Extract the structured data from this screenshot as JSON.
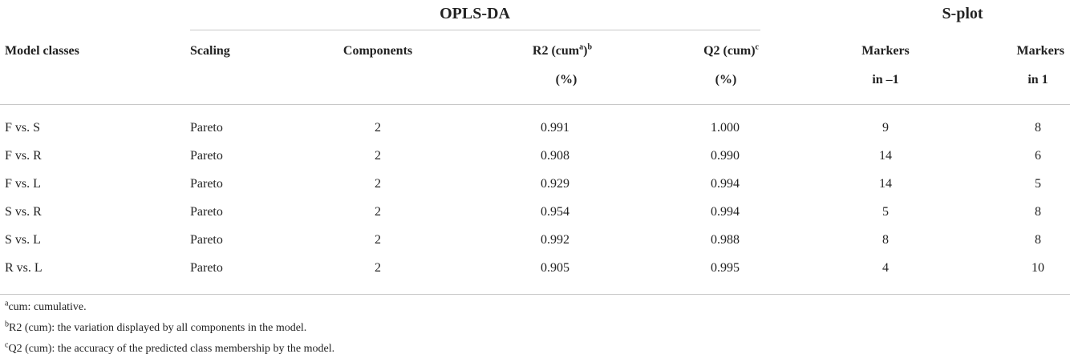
{
  "header": {
    "group_oplsda": "OPLS-DA",
    "group_splot": "S-plot",
    "col_model": "Model classes",
    "col_scaling": "Scaling",
    "col_components": "Components",
    "col_r2": "R2 (cum",
    "col_r2_sup_a": "a",
    "col_r2_close": ")",
    "col_r2_sup_b": "b",
    "col_r2_unit": "(%)",
    "col_q2": "Q2 (cum)",
    "col_q2_sup": "c",
    "col_q2_unit": "(%)",
    "col_m1_line1": "Markers",
    "col_m1_line2": "in –1",
    "col_m2_line1": "Markers",
    "col_m2_line2": "in 1"
  },
  "rows": [
    {
      "model": "F vs. S",
      "scaling": "Pareto",
      "components": "2",
      "r2": "0.991",
      "q2": "1.000",
      "m1": "9",
      "m2": "8"
    },
    {
      "model": "F vs. R",
      "scaling": "Pareto",
      "components": "2",
      "r2": "0.908",
      "q2": "0.990",
      "m1": "14",
      "m2": "6"
    },
    {
      "model": "F vs. L",
      "scaling": "Pareto",
      "components": "2",
      "r2": "0.929",
      "q2": "0.994",
      "m1": "14",
      "m2": "5"
    },
    {
      "model": "S vs. R",
      "scaling": "Pareto",
      "components": "2",
      "r2": "0.954",
      "q2": "0.994",
      "m1": "5",
      "m2": "8"
    },
    {
      "model": "S vs. L",
      "scaling": "Pareto",
      "components": "2",
      "r2": "0.992",
      "q2": "0.988",
      "m1": "8",
      "m2": "8"
    },
    {
      "model": "R vs. L",
      "scaling": "Pareto",
      "components": "2",
      "r2": "0.905",
      "q2": "0.995",
      "m1": "4",
      "m2": "10"
    }
  ],
  "footnotes": [
    {
      "mark": "a",
      "text": "cum: cumulative."
    },
    {
      "mark": "b",
      "text": "R2 (cum): the variation displayed by all components in the model."
    },
    {
      "mark": "c",
      "text": "Q2 (cum): the accuracy of the predicted class membership by the model."
    }
  ]
}
